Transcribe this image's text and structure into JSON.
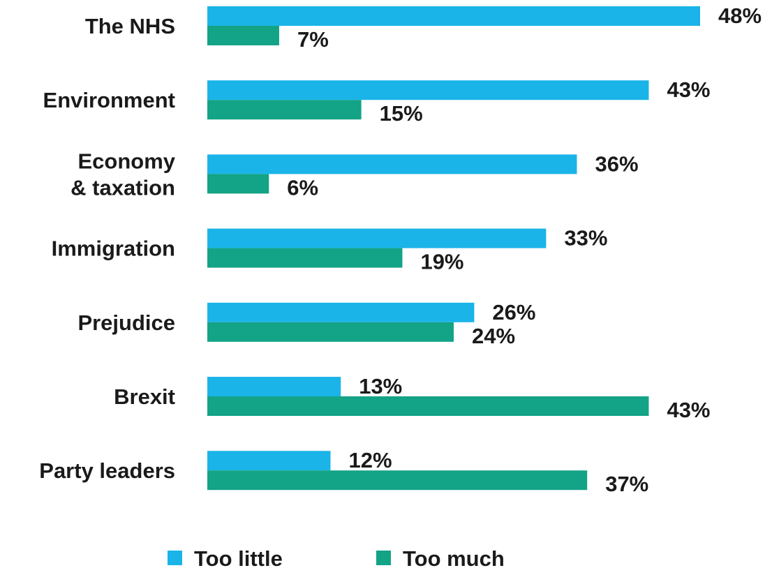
{
  "chart_data": {
    "type": "bar",
    "orientation": "horizontal",
    "categories": [
      [
        "The NHS"
      ],
      [
        "Environment"
      ],
      [
        "Economy",
        "& taxation"
      ],
      [
        "Immigration"
      ],
      [
        "Prejudice"
      ],
      [
        "Brexit"
      ],
      [
        "Party leaders"
      ]
    ],
    "series": [
      {
        "name": "Too little",
        "color": "#1ab4e8",
        "values": [
          48,
          43,
          36,
          33,
          26,
          13,
          12
        ],
        "labels": [
          "48%",
          "43%",
          "36%",
          "33%",
          "26%",
          "13%",
          "12%"
        ]
      },
      {
        "name": "Too much",
        "color": "#13a386",
        "values": [
          7,
          15,
          6,
          19,
          24,
          43,
          37
        ],
        "labels": [
          "7%",
          "15%",
          "6%",
          "19%",
          "24%",
          "43%",
          "37%"
        ]
      }
    ],
    "xlim": [
      0,
      48
    ],
    "grid": false,
    "legend": "bottom-center"
  }
}
